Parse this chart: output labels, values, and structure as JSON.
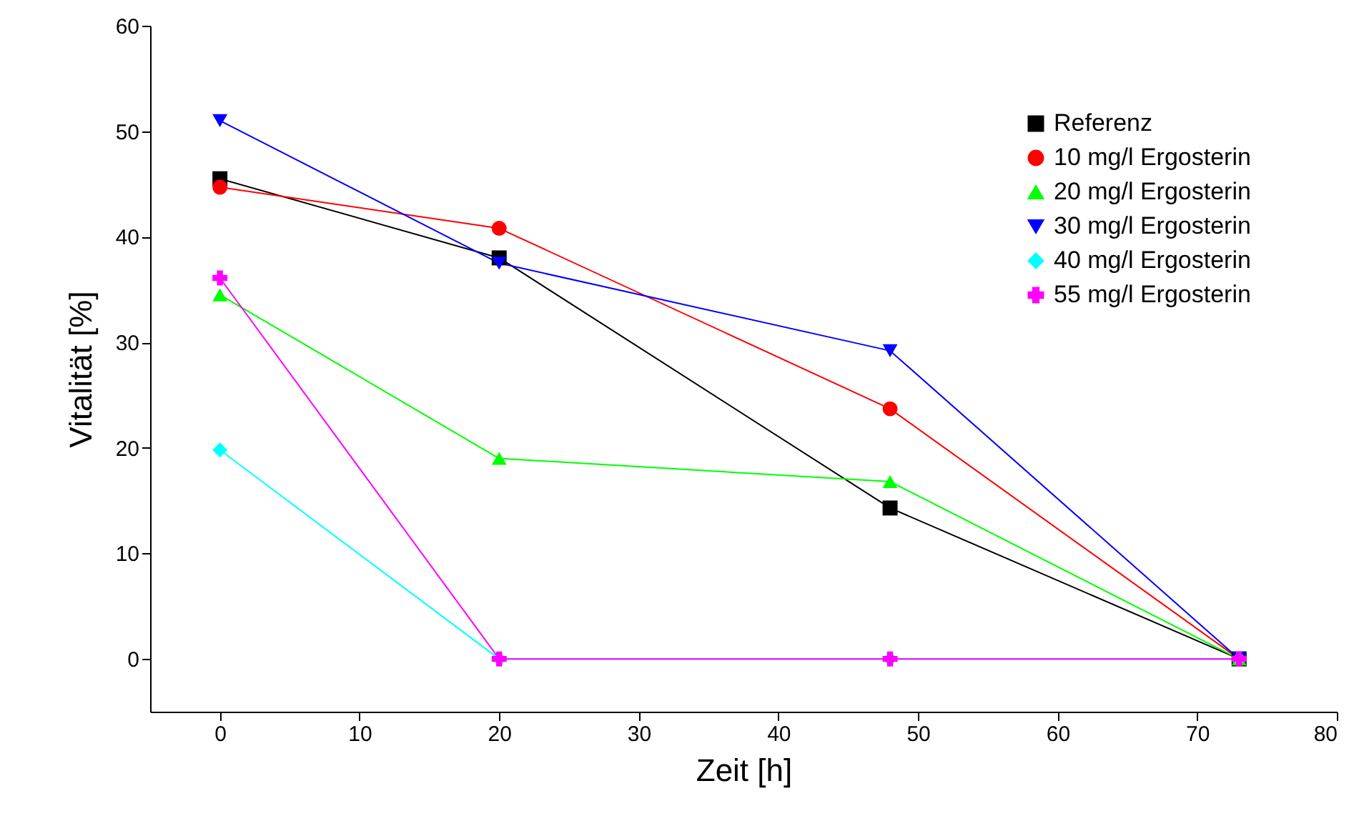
{
  "chart_data": {
    "type": "line",
    "xlabel": "Zeit [h]",
    "ylabel": "Vitalität [%]",
    "x": [
      0,
      20,
      48,
      73
    ],
    "xlim": [
      -5,
      80
    ],
    "xticks": [
      0,
      10,
      20,
      30,
      40,
      50,
      60,
      70,
      80
    ],
    "ylim": [
      -5,
      60
    ],
    "yticks": [
      0,
      10,
      20,
      30,
      40,
      50,
      60
    ],
    "grid": false,
    "legend": "top right",
    "series": [
      {
        "name": "Referenz",
        "color": "#000000",
        "marker": "square",
        "values": [
          45.5,
          38,
          14.3,
          0
        ]
      },
      {
        "name": "10 mg/l Ergosterin",
        "color": "#ff0000",
        "marker": "circle",
        "values": [
          44.7,
          40.8,
          23.7,
          0
        ]
      },
      {
        "name": "20 mg/l Ergosterin",
        "color": "#00ff00",
        "marker": "triangle",
        "values": [
          34.5,
          19,
          16.8,
          0
        ]
      },
      {
        "name": "30 mg/l Ergosterin",
        "color": "#0000ff",
        "marker": "triangle-down",
        "values": [
          51,
          37.5,
          29.2,
          0
        ]
      },
      {
        "name": "40 mg/l Ergosterin",
        "color": "#00ffff",
        "marker": "diamond",
        "values": [
          19.8,
          0,
          0,
          0
        ]
      },
      {
        "name": "55 mg/l Ergosterin",
        "color": "#ff00ff",
        "marker": "cross",
        "values": [
          36.1,
          0,
          0,
          0
        ]
      }
    ]
  }
}
